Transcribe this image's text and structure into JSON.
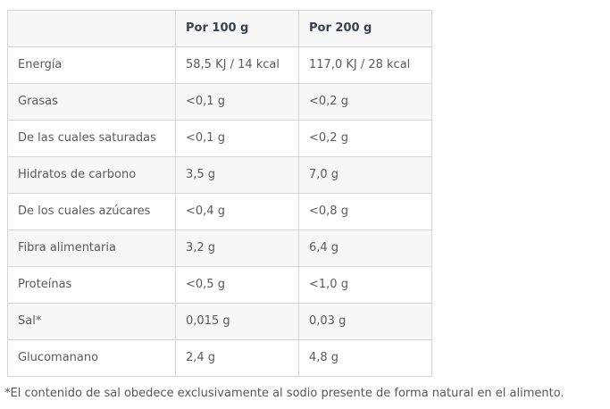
{
  "colors": {
    "page_bg": "#ffffff",
    "header_row_bg": "#f7f7f7",
    "stripe_row_bg": "#f7f7f7",
    "border": "#d6d6d6",
    "header_text": "#39424c",
    "body_text": "#5a5a5a",
    "footnote_text": "#565656"
  },
  "table": {
    "columns": [
      "",
      "Por 100 g",
      "Por 200 g"
    ],
    "rows": [
      {
        "label": "Energía",
        "per100": "58,5 KJ / 14 kcal",
        "per200": "117,0 KJ / 28 kcal"
      },
      {
        "label": "Grasas",
        "per100": "<0,1 g",
        "per200": "<0,2 g"
      },
      {
        "label": "De las cuales saturadas",
        "per100": "<0,1 g",
        "per200": "<0,2 g"
      },
      {
        "label": "Hidratos de carbono",
        "per100": "3,5 g",
        "per200": "7,0 g"
      },
      {
        "label": "De los cuales azúcares",
        "per100": "<0,4 g",
        "per200": "<0,8 g"
      },
      {
        "label": "Fibra alimentaria",
        "per100": "3,2 g",
        "per200": "6,4 g"
      },
      {
        "label": "Proteínas",
        "per100": "<0,5 g",
        "per200": "<1,0 g"
      },
      {
        "label": "Sal*",
        "per100": "0,015 g",
        "per200": "0,03 g"
      },
      {
        "label": "Glucomanano",
        "per100": "2,4 g",
        "per200": "4,8 g"
      }
    ]
  },
  "footnote": "*El contenido de sal obedece exclusivamente al sodio presente de forma natural en el alimento."
}
